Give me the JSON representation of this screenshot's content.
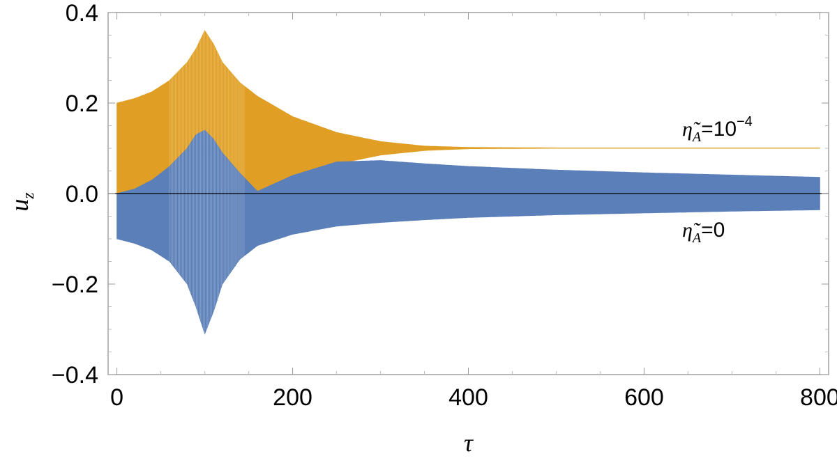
{
  "chart_data": {
    "type": "area",
    "xlabel": "τ",
    "ylabel": "u",
    "ylabel_sub": "z",
    "xlim": [
      -10,
      810
    ],
    "ylim": [
      -0.4,
      0.4
    ],
    "x_ticks": [
      0,
      200,
      400,
      600,
      800
    ],
    "x_tick_labels": [
      "0",
      "200",
      "400",
      "600",
      "800"
    ],
    "y_ticks": [
      -0.4,
      -0.2,
      0.0,
      0.2,
      0.4
    ],
    "y_tick_labels": [
      "−0.4",
      "−0.2",
      "0.0",
      "0.2",
      "0.4"
    ],
    "grid": false,
    "zero_line": true,
    "series": [
      {
        "name": "η̃_A=10^−4",
        "label_main": "η̃",
        "label_sub": "A",
        "label_eq": "=10",
        "label_sup": "−4",
        "color": "#E09F24",
        "envelope_x": [
          0,
          20,
          40,
          60,
          80,
          90,
          100,
          110,
          120,
          140,
          160,
          200,
          250,
          300,
          350,
          400,
          500,
          600,
          700,
          800
        ],
        "envelope_upper": [
          0.2,
          0.21,
          0.225,
          0.25,
          0.29,
          0.32,
          0.36,
          0.33,
          0.29,
          0.245,
          0.215,
          0.17,
          0.135,
          0.115,
          0.105,
          0.102,
          0.101,
          0.101,
          0.101,
          0.101
        ],
        "envelope_lower": [
          0.0,
          -0.01,
          -0.03,
          -0.06,
          -0.11,
          -0.14,
          -0.16,
          -0.13,
          -0.1,
          -0.05,
          -0.01,
          0.035,
          0.065,
          0.085,
          0.095,
          0.099,
          0.1,
          0.1,
          0.1,
          0.1
        ]
      },
      {
        "name": "η̃_A=0",
        "label_main": "η̃",
        "label_sub": "A",
        "label_eq": "=0",
        "label_sup": "",
        "color": "#5B7FB8",
        "envelope_x": [
          0,
          20,
          40,
          60,
          80,
          90,
          100,
          110,
          120,
          140,
          160,
          200,
          250,
          300,
          350,
          400,
          500,
          600,
          700,
          800
        ],
        "envelope_upper": [
          0.0,
          0.01,
          0.03,
          0.06,
          0.1,
          0.13,
          0.14,
          0.12,
          0.09,
          0.045,
          0.005,
          0.04,
          0.07,
          0.073,
          0.066,
          0.06,
          0.052,
          0.046,
          0.041,
          0.036
        ],
        "envelope_lower": [
          -0.1,
          -0.11,
          -0.125,
          -0.15,
          -0.2,
          -0.25,
          -0.31,
          -0.26,
          -0.2,
          -0.145,
          -0.115,
          -0.09,
          -0.072,
          -0.064,
          -0.058,
          -0.053,
          -0.047,
          -0.043,
          -0.039,
          -0.036
        ]
      }
    ]
  }
}
